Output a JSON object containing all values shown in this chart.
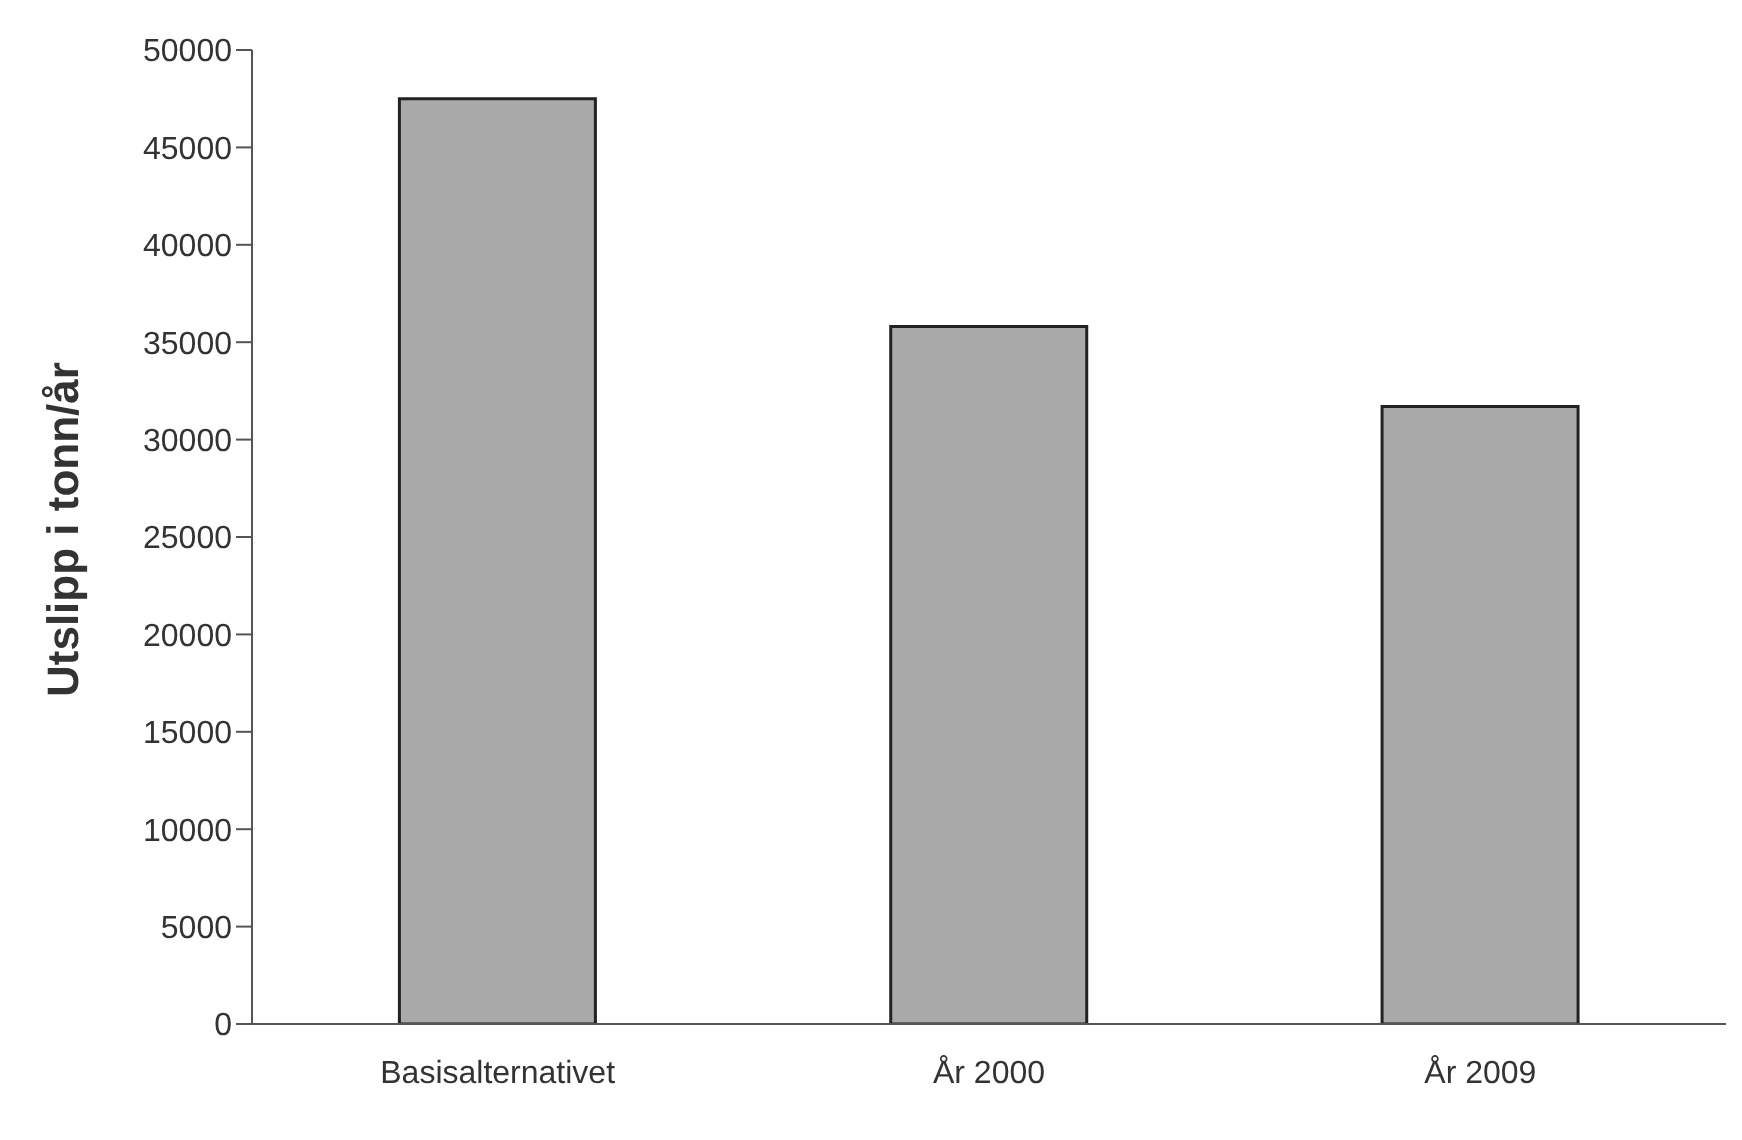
{
  "chart_data": {
    "type": "bar",
    "ylabel": "Utslipp i  tonn/år",
    "categories": [
      "Basisalternativet",
      "År 2000",
      "År 2009"
    ],
    "values": [
      47500,
      35800,
      31700
    ],
    "color": "#a9a9a9",
    "ylim": [
      0,
      50000
    ],
    "yticks": [
      0,
      5000,
      10000,
      15000,
      20000,
      25000,
      30000,
      35000,
      40000,
      45000,
      50000
    ],
    "grid": false
  }
}
